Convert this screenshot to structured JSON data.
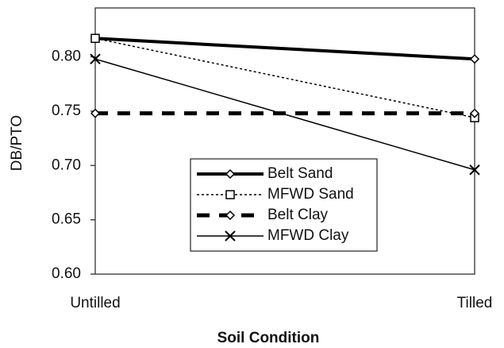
{
  "chart_data": {
    "type": "line",
    "categories": [
      "Untilled",
      "Tilled"
    ],
    "x_label": "Soil Condition",
    "y_label": "DB/PTO",
    "ylim": [
      0.6,
      0.845
    ],
    "yticks": [
      {
        "value": 0.6,
        "label": "0.60"
      },
      {
        "value": 0.65,
        "label": "0.65"
      },
      {
        "value": 0.7,
        "label": "0.70"
      },
      {
        "value": 0.75,
        "label": "0.75"
      },
      {
        "value": 0.8,
        "label": "0.80"
      }
    ],
    "grid": false,
    "legend": "lower-center",
    "series": [
      {
        "name": "Belt Sand",
        "color": "#000000",
        "style": "thick-solid",
        "marker": "diamond",
        "values": [
          0.817,
          0.798
        ]
      },
      {
        "name": "MFWD Sand",
        "color": "#000000",
        "style": "dotted",
        "marker": "square",
        "values": [
          0.817,
          0.744
        ]
      },
      {
        "name": "Belt Clay",
        "color": "#000000",
        "style": "thick-dashed",
        "marker": "diamond",
        "values": [
          0.748,
          0.748
        ]
      },
      {
        "name": "MFWD Clay",
        "color": "#000000",
        "style": "thin-solid",
        "marker": "x",
        "values": [
          0.798,
          0.696
        ]
      }
    ]
  }
}
